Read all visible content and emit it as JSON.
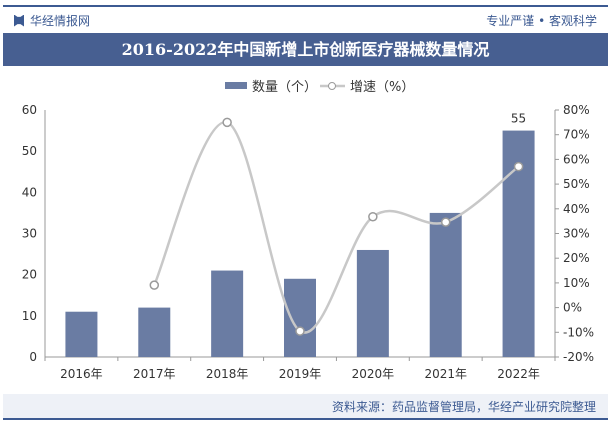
{
  "header": {
    "brand": "华经情报网",
    "slogan": "专业严谨 • 客观科学"
  },
  "footer": {
    "source": "资料来源：药品监督管理局，华经产业研究院整理"
  },
  "colors": {
    "bar": "#6a7ca3",
    "line": "#c8c8c8",
    "title_bg": "#475f91"
  },
  "chart_data": {
    "type": "bar+line",
    "title": "2016-2022年中国新增上市创新医疗器械数量情况",
    "categories": [
      "2016年",
      "2017年",
      "2018年",
      "2019年",
      "2020年",
      "2021年",
      "2022年"
    ],
    "series": [
      {
        "name": "数量（个）",
        "type": "bar",
        "axis": "left",
        "values": [
          11,
          12,
          21,
          19,
          26,
          35,
          55
        ]
      },
      {
        "name": "增速（%）",
        "type": "line",
        "axis": "right",
        "values": [
          null,
          9.1,
          75.0,
          -9.5,
          36.8,
          34.6,
          57.1
        ]
      }
    ],
    "data_labels": [
      {
        "index": 6,
        "text": "55"
      }
    ],
    "left_axis": {
      "ylim": [
        0,
        60
      ],
      "ticks": [
        "0",
        "10",
        "20",
        "30",
        "40",
        "50",
        "60"
      ]
    },
    "right_axis": {
      "ylim": [
        -20,
        80
      ],
      "ticks": [
        "-20%",
        "-10%",
        "0%",
        "10%",
        "20%",
        "30%",
        "40%",
        "50%",
        "60%",
        "70%",
        "80%"
      ]
    },
    "legend": "top-center",
    "grid": false
  }
}
